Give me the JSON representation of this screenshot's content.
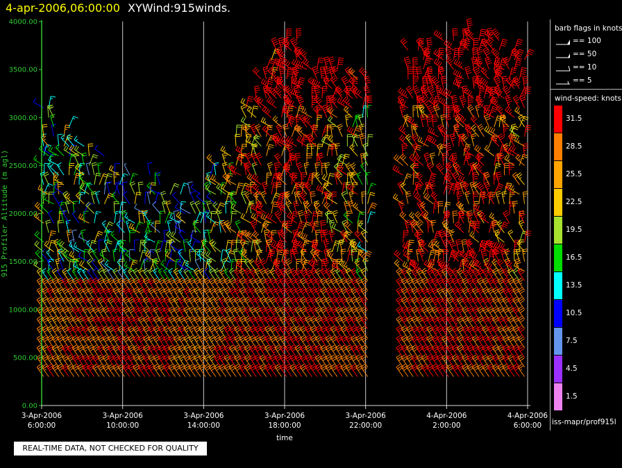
{
  "header": {
    "date_time": "4-apr-2006,06:00:00",
    "title": "XYWind:915winds."
  },
  "qc_note": "REAL-TIME DATA, NOT CHECKED FOR QUALITY",
  "legend": {
    "barb_header": "barb flags in knots",
    "barb_flags": [
      {
        "label": "== 100",
        "knots": 100
      },
      {
        "label": "== 50",
        "knots": 50
      },
      {
        "label": "== 10",
        "knots": 10
      },
      {
        "label": "== 5",
        "knots": 5
      }
    ],
    "speed_header": "wind-speed: knots",
    "speed_bins": [
      {
        "label": "31.5",
        "color": "#ff0000"
      },
      {
        "label": "28.5",
        "color": "#ff7f00"
      },
      {
        "label": "25.5",
        "color": "#ffa500"
      },
      {
        "label": "22.5",
        "color": "#ffcc00"
      },
      {
        "label": "19.5",
        "color": "#a6e22e"
      },
      {
        "label": "16.5",
        "color": "#00dd00"
      },
      {
        "label": "13.5",
        "color": "#00ffff"
      },
      {
        "label": "10.5",
        "color": "#0000ff"
      },
      {
        "label": "7.5",
        "color": "#6495ed"
      },
      {
        "label": "4.5",
        "color": "#9b30ff"
      },
      {
        "label": "1.5",
        "color": "#ee82ee"
      }
    ],
    "source": "iss-mapr/prof915l"
  },
  "chart_data": {
    "type": "wind-barb time-height",
    "ylabel": "915 Profiler Altitude (m agl)",
    "xlabel": "time",
    "ylim": [
      0,
      4000
    ],
    "yticks": [
      "0.00",
      "500.00",
      "1000.00",
      "1500.00",
      "2000.00",
      "2500.00",
      "3000.00",
      "3500.00",
      "4000.00"
    ],
    "xlim_hours": [
      0,
      24
    ],
    "xticks": [
      {
        "hours": 0,
        "date": "3-Apr-2006",
        "time": "6:00:00"
      },
      {
        "hours": 4,
        "date": "3-Apr-2006",
        "time": "10:00:00"
      },
      {
        "hours": 8,
        "date": "3-Apr-2006",
        "time": "14:00:00"
      },
      {
        "hours": 12,
        "date": "3-Apr-2006",
        "time": "18:00:00"
      },
      {
        "hours": 16,
        "date": "3-Apr-2006",
        "time": "22:00:00"
      },
      {
        "hours": 20,
        "date": "4-Apr-2006",
        "time": "2:00:00"
      },
      {
        "hours": 24,
        "date": "4-Apr-2006",
        "time": "6:00:00"
      }
    ],
    "data_gaps_hours": [
      [
        16.1,
        17.8
      ]
    ],
    "profile_interval_hours": 0.25,
    "gate_spacing_m": 100,
    "speed_knots_summary": [
      {
        "hours": 0,
        "low_speed": 30,
        "upper_speed": 18,
        "top_m": 3300
      },
      {
        "hours": 4,
        "low_speed": 32,
        "upper_speed": 15,
        "top_m": 2500
      },
      {
        "hours": 8,
        "low_speed": 30,
        "upper_speed": 16,
        "top_m": 2300
      },
      {
        "hours": 12,
        "low_speed": 33,
        "upper_speed": 34,
        "top_m": 4000
      },
      {
        "hours": 16,
        "low_speed": 31,
        "upper_speed": 22,
        "top_m": 3500
      },
      {
        "hours": 20,
        "low_speed": 33,
        "upper_speed": 34,
        "top_m": 4000
      },
      {
        "hours": 24,
        "low_speed": 31,
        "upper_speed": 28,
        "top_m": 3900
      }
    ]
  }
}
